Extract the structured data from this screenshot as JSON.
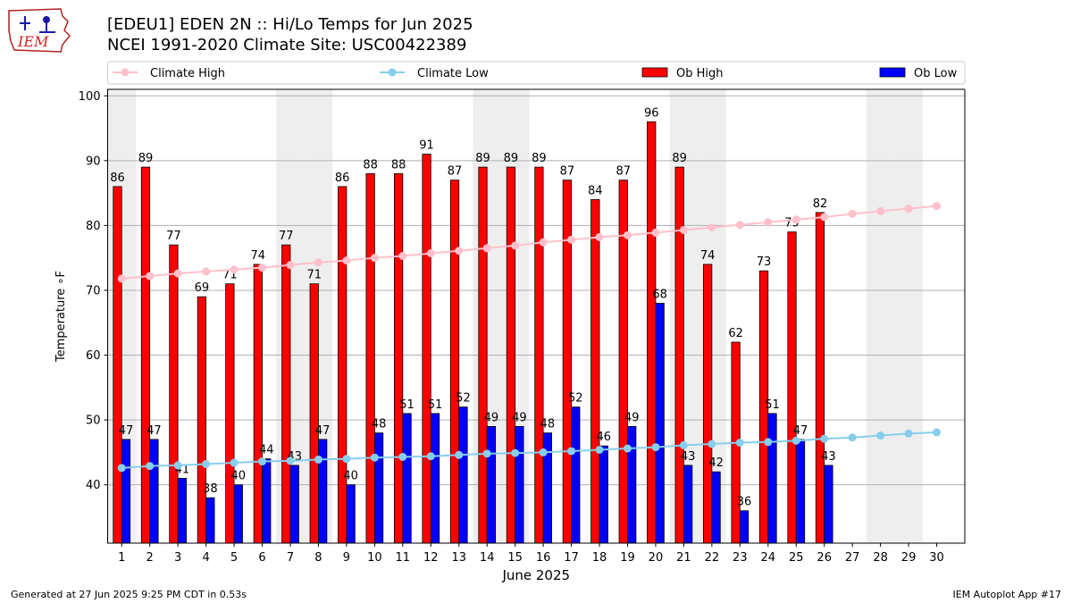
{
  "header": {
    "title_line1": "[EDEU1] EDEN 2N :: Hi/Lo Temps for Jun 2025",
    "title_line2": "NCEI 1991-2020 Climate Site: USC00422389",
    "logo_text": "IEM"
  },
  "footer": {
    "left": "Generated at 27 Jun 2025 9:25 PM CDT in 0.53s",
    "right": "IEM Autoplot App #17"
  },
  "colors": {
    "ob_high": "#ff0000",
    "ob_low": "#0000ff",
    "climate_high": "#ffc0cb",
    "climate_low": "#87ceeb",
    "weekend_shade": "#eeeeee"
  },
  "chart_data": {
    "type": "bar",
    "title": "[EDEU1] EDEN 2N :: Hi/Lo Temps for Jun 2025",
    "xlabel": "June 2025",
    "ylabel": "Temperature ∘F",
    "ylim": [
      31,
      101
    ],
    "yticks": [
      40,
      50,
      60,
      70,
      80,
      90,
      100
    ],
    "grid": "horizontal",
    "legend_position": "top",
    "categories": [
      "1",
      "2",
      "3",
      "4",
      "5",
      "6",
      "7",
      "8",
      "9",
      "10",
      "11",
      "12",
      "13",
      "14",
      "15",
      "16",
      "17",
      "18",
      "19",
      "20",
      "21",
      "22",
      "23",
      "24",
      "25",
      "26",
      "27",
      "28",
      "29",
      "30"
    ],
    "weekend_shaded_days": [
      1,
      7,
      8,
      14,
      15,
      21,
      22,
      28,
      29
    ],
    "series": [
      {
        "name": "Climate High",
        "kind": "line",
        "values": [
          71.8,
          72.2,
          72.6,
          72.9,
          73.2,
          73.5,
          73.9,
          74.3,
          74.6,
          75.0,
          75.3,
          75.7,
          76.1,
          76.5,
          76.9,
          77.4,
          77.8,
          78.2,
          78.5,
          78.9,
          79.3,
          79.7,
          80.1,
          80.5,
          80.9,
          81.3,
          81.8,
          82.2,
          82.6,
          83.0
        ]
      },
      {
        "name": "Climate Low",
        "kind": "line",
        "values": [
          42.6,
          42.9,
          43.0,
          43.2,
          43.4,
          43.6,
          43.7,
          43.9,
          44.0,
          44.2,
          44.3,
          44.4,
          44.6,
          44.8,
          44.9,
          45.0,
          45.2,
          45.4,
          45.6,
          45.8,
          46.1,
          46.3,
          46.5,
          46.6,
          46.8,
          47.1,
          47.3,
          47.6,
          47.9,
          48.1
        ]
      },
      {
        "name": "Ob High",
        "kind": "bar",
        "values": [
          86,
          89,
          77,
          69,
          71,
          74,
          77,
          71,
          86,
          88,
          88,
          91,
          87,
          89,
          89,
          89,
          87,
          84,
          87,
          96,
          89,
          74,
          62,
          73,
          79,
          82,
          null,
          null,
          null,
          null
        ]
      },
      {
        "name": "Ob Low",
        "kind": "bar",
        "values": [
          47,
          47,
          41,
          38,
          40,
          44,
          43,
          47,
          40,
          48,
          51,
          51,
          52,
          49,
          49,
          48,
          52,
          46,
          49,
          68,
          43,
          42,
          36,
          51,
          47,
          43,
          null,
          null,
          null,
          null
        ]
      }
    ]
  }
}
